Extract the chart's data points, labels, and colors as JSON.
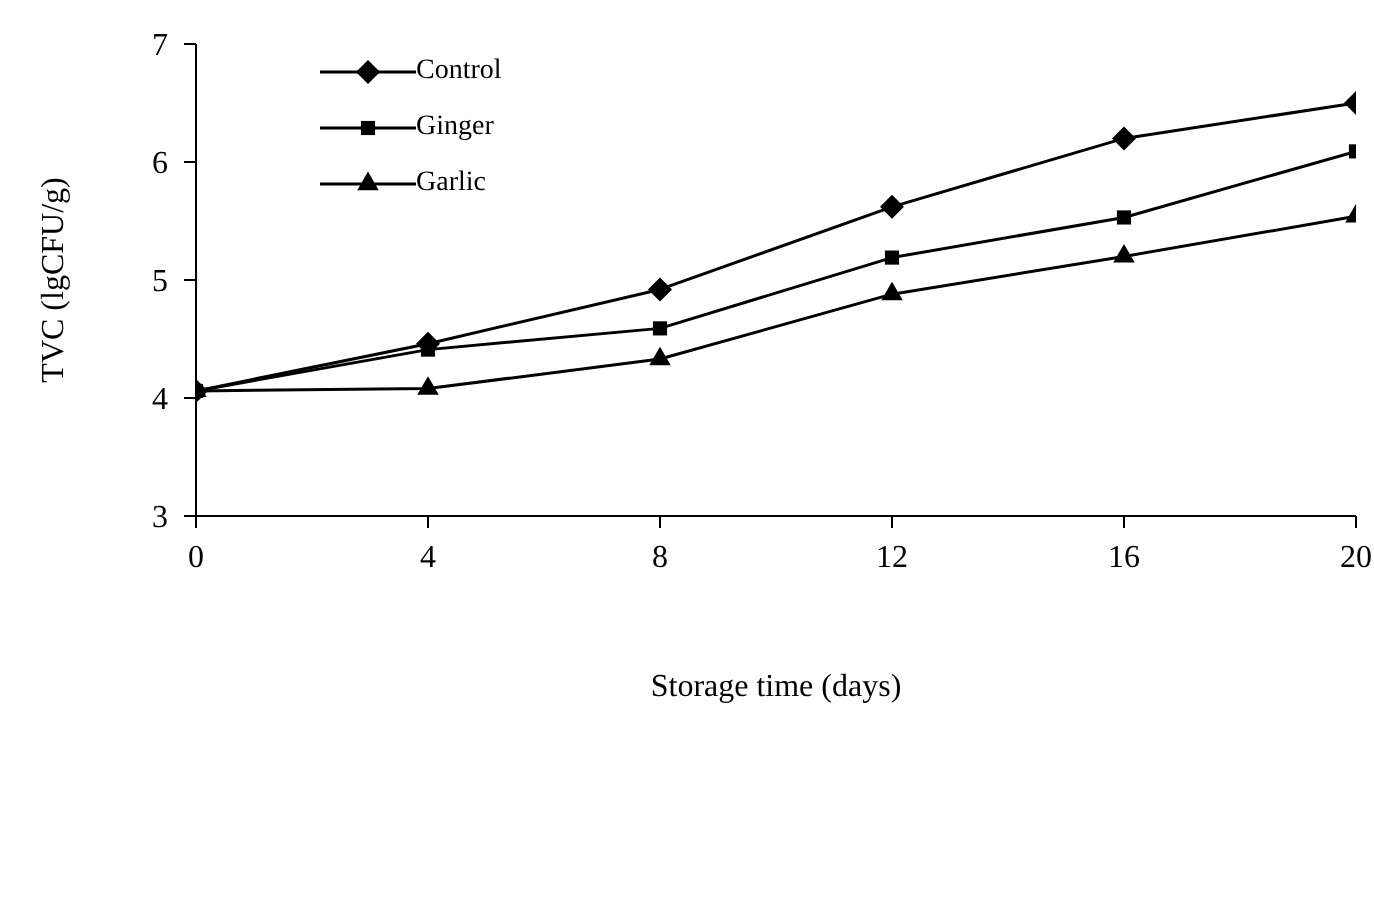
{
  "chart_data": {
    "type": "line",
    "xlabel": "Storage time (days)",
    "ylabel": "TVC (lgCFU/g)",
    "x": [
      0,
      4,
      8,
      12,
      16,
      20
    ],
    "series": [
      {
        "name": "Control",
        "color": "#000000",
        "marker": "diamond",
        "values": [
          4.06,
          4.46,
          4.92,
          5.62,
          6.2,
          6.5
        ]
      },
      {
        "name": "Ginger",
        "color": "#000000",
        "marker": "square",
        "values": [
          4.06,
          4.41,
          4.59,
          5.19,
          5.53,
          6.09
        ]
      },
      {
        "name": "Garlic",
        "color": "#000000",
        "marker": "triangle",
        "values": [
          4.06,
          4.08,
          4.33,
          4.88,
          5.2,
          5.54
        ]
      }
    ],
    "xlim": [
      0,
      20
    ],
    "xticks": [
      0,
      4,
      8,
      12,
      16,
      20
    ],
    "ylim": [
      3,
      7
    ],
    "yticks": [
      3,
      4,
      5,
      6,
      7
    ],
    "grid": false,
    "legend": "top left",
    "line_style": "solid"
  }
}
